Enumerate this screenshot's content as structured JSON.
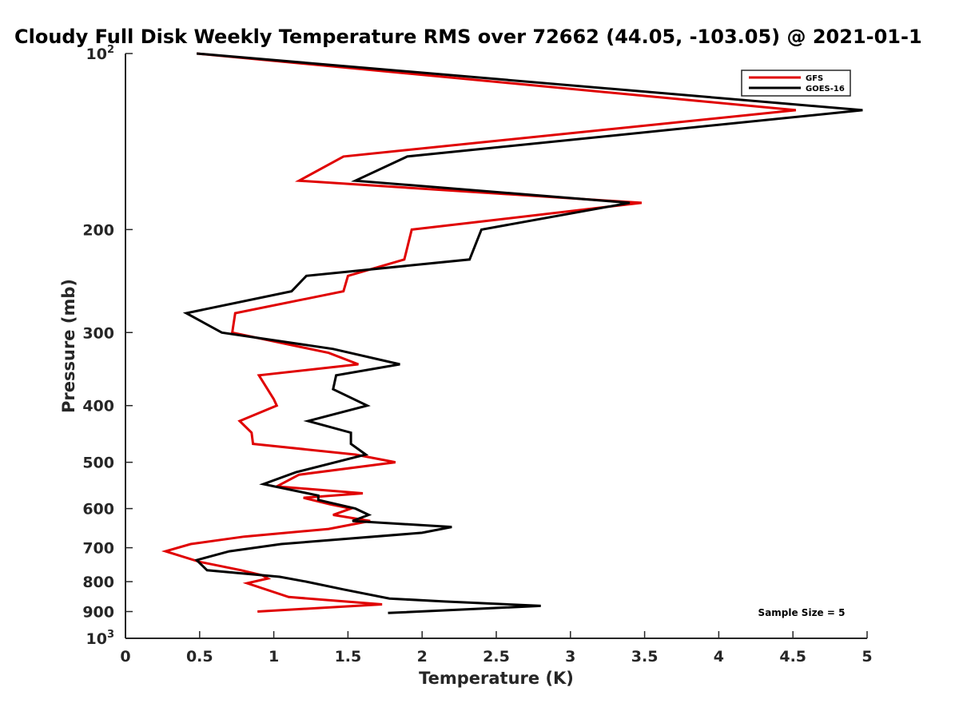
{
  "chart_data": {
    "type": "line",
    "title": "Cloudy Full Disk Weekly Temperature RMS over 72662 (44.05, -103.05) @ 2021-01-1",
    "xlabel": "Temperature (K)",
    "ylabel": "Pressure (mb)",
    "xlim": [
      0,
      5
    ],
    "ylim": [
      100,
      1000
    ],
    "y_scale": "log",
    "y_reversed": true,
    "grid": false,
    "legend_position": "top-right",
    "x_ticks": [
      {
        "value": 0,
        "label": "0"
      },
      {
        "value": 0.5,
        "label": "0.5"
      },
      {
        "value": 1,
        "label": "1"
      },
      {
        "value": 1.5,
        "label": "1.5"
      },
      {
        "value": 2,
        "label": "2"
      },
      {
        "value": 2.5,
        "label": "2.5"
      },
      {
        "value": 3,
        "label": "3"
      },
      {
        "value": 3.5,
        "label": "3.5"
      },
      {
        "value": 4,
        "label": "4"
      },
      {
        "value": 4.5,
        "label": "4.5"
      },
      {
        "value": 5,
        "label": "5"
      }
    ],
    "y_ticks": [
      {
        "value": 100,
        "label": "10",
        "sup": "2"
      },
      {
        "value": 200,
        "label": "200"
      },
      {
        "value": 300,
        "label": "300"
      },
      {
        "value": 400,
        "label": "400"
      },
      {
        "value": 500,
        "label": "500"
      },
      {
        "value": 600,
        "label": "600"
      },
      {
        "value": 700,
        "label": "700"
      },
      {
        "value": 800,
        "label": "800"
      },
      {
        "value": 900,
        "label": "900"
      },
      {
        "value": 1000,
        "label": "10",
        "sup": "3"
      }
    ],
    "series": [
      {
        "name": "GFS",
        "color": "#e00000",
        "points": [
          [
            0.48,
            100
          ],
          [
            4.52,
            125
          ],
          [
            1.47,
            150
          ],
          [
            1.17,
            165
          ],
          [
            3.48,
            180
          ],
          [
            1.93,
            200
          ],
          [
            1.88,
            225
          ],
          [
            1.5,
            240
          ],
          [
            1.47,
            255
          ],
          [
            0.74,
            278
          ],
          [
            0.72,
            300
          ],
          [
            1.37,
            325
          ],
          [
            1.57,
            340
          ],
          [
            0.9,
            355
          ],
          [
            1.0,
            390
          ],
          [
            1.02,
            400
          ],
          [
            0.77,
            425
          ],
          [
            0.85,
            445
          ],
          [
            0.86,
            465
          ],
          [
            1.55,
            485
          ],
          [
            1.82,
            500
          ],
          [
            1.17,
            525
          ],
          [
            1.02,
            550
          ],
          [
            1.6,
            565
          ],
          [
            1.2,
            575
          ],
          [
            1.38,
            590
          ],
          [
            1.52,
            600
          ],
          [
            1.4,
            615
          ],
          [
            1.65,
            630
          ],
          [
            1.37,
            650
          ],
          [
            0.8,
            670
          ],
          [
            0.44,
            690
          ],
          [
            0.27,
            710
          ],
          [
            0.5,
            740
          ],
          [
            0.78,
            765
          ],
          [
            0.92,
            780
          ],
          [
            0.96,
            790
          ],
          [
            0.82,
            805
          ],
          [
            1.1,
            850
          ],
          [
            1.73,
            875
          ],
          [
            0.89,
            900
          ]
        ]
      },
      {
        "name": "GOES-16",
        "color": "#000000",
        "points": [
          [
            0.48,
            100
          ],
          [
            4.97,
            125
          ],
          [
            1.9,
            150
          ],
          [
            1.55,
            165
          ],
          [
            3.4,
            180
          ],
          [
            2.4,
            200
          ],
          [
            2.32,
            225
          ],
          [
            1.22,
            240
          ],
          [
            1.12,
            255
          ],
          [
            0.41,
            278
          ],
          [
            0.65,
            300
          ],
          [
            1.4,
            320
          ],
          [
            1.85,
            340
          ],
          [
            1.42,
            355
          ],
          [
            1.4,
            375
          ],
          [
            1.63,
            400
          ],
          [
            1.23,
            425
          ],
          [
            1.52,
            445
          ],
          [
            1.52,
            465
          ],
          [
            1.62,
            485
          ],
          [
            1.15,
            520
          ],
          [
            0.93,
            545
          ],
          [
            1.3,
            570
          ],
          [
            1.3,
            580
          ],
          [
            1.55,
            600
          ],
          [
            1.64,
            615
          ],
          [
            1.53,
            630
          ],
          [
            2.2,
            645
          ],
          [
            2.0,
            660
          ],
          [
            1.05,
            690
          ],
          [
            0.7,
            710
          ],
          [
            0.48,
            735
          ],
          [
            0.55,
            765
          ],
          [
            1.04,
            785
          ],
          [
            1.22,
            800
          ],
          [
            1.47,
            825
          ],
          [
            1.78,
            855
          ],
          [
            2.15,
            865
          ],
          [
            2.8,
            880
          ],
          [
            1.77,
            905
          ]
        ]
      }
    ],
    "annotations": [
      {
        "text": "Sample Size = 5",
        "position": "bottom-right"
      }
    ]
  }
}
